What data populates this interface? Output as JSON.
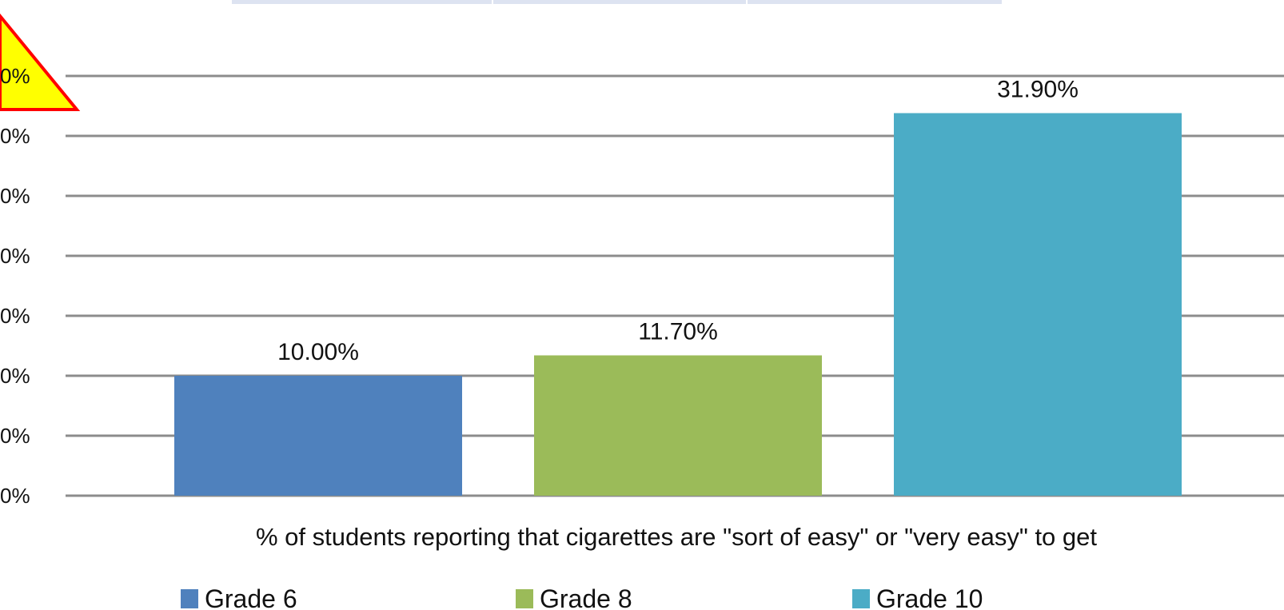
{
  "chart_data": {
    "type": "bar",
    "categories": [
      "Grade 6",
      "Grade 8",
      "Grade 10"
    ],
    "values": [
      10.0,
      11.7,
      31.9
    ],
    "data_labels": [
      "10.00%",
      "11.70%",
      "31.90%"
    ],
    "y_tick_labels": [
      "0%",
      "0%",
      "0%",
      "0%",
      "0%",
      "0%",
      "0%",
      "0%"
    ],
    "xlabel": "% of students reporting that cigarettes are \"sort of easy\" or \"very easy\" to get",
    "ylim": [
      0,
      35
    ],
    "grid": true,
    "legend_position": "bottom",
    "colors": [
      "#4f81bd",
      "#9bbb59",
      "#4bacc6"
    ],
    "grid_color": "#8c8c8c",
    "warning_color": "#ffff00",
    "warning_border": "#ff0000",
    "header_tab_color": "#dde3f1"
  }
}
